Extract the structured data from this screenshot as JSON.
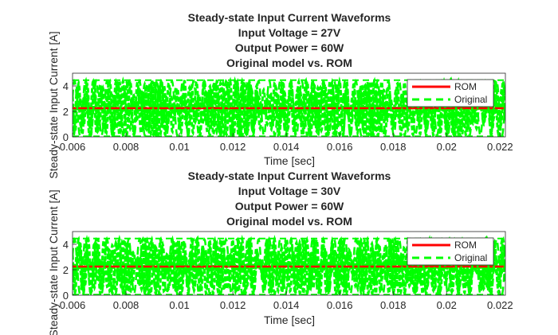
{
  "chart_data": [
    {
      "type": "line",
      "title_lines": [
        "Steady-state Input Current Waveforms",
        "Input Voltage = 27V",
        "Output Power = 60W",
        "Original model vs. ROM"
      ],
      "xlabel": "Time [sec]",
      "ylabel": "Steady-state Input Current [A]",
      "xlim": [
        0.006,
        0.0222
      ],
      "ylim": [
        0,
        5
      ],
      "xticks": [
        0.006,
        0.008,
        0.01,
        0.012,
        0.014,
        0.016,
        0.018,
        0.02,
        0.022
      ],
      "xtick_labels": [
        "0.006",
        "0.008",
        "0.01",
        "0.012",
        "0.014",
        "0.016",
        "0.018",
        "0.02",
        "0.022"
      ],
      "yticks": [
        0,
        2,
        4
      ],
      "ytick_labels": [
        "0",
        "2",
        "4"
      ],
      "legend": "top-right",
      "grid": false,
      "series": [
        {
          "name": "ROM",
          "color": "#ff0000",
          "style": "solid",
          "y": [
            2.25,
            2.25,
            2.25,
            2.25,
            2.25,
            2.25,
            2.25,
            2.25,
            2.25
          ]
        },
        {
          "name": "Original",
          "color": "#00ff00",
          "style": "dashed",
          "mean": 2.25,
          "amplitude": 2.15,
          "min": 0.05,
          "max": 4.45
        }
      ]
    },
    {
      "type": "line",
      "title_lines": [
        "Steady-state Input Current Waveforms",
        "Input Voltage = 30V",
        "Output Power = 60W",
        "Original model vs. ROM"
      ],
      "xlabel": "Time [sec]",
      "ylabel": "Steady-state Input Current [A]",
      "xlim": [
        0.006,
        0.0222
      ],
      "ylim": [
        0,
        5
      ],
      "xticks": [
        0.006,
        0.008,
        0.01,
        0.012,
        0.014,
        0.016,
        0.018,
        0.02,
        0.022
      ],
      "xtick_labels": [
        "0.006",
        "0.008",
        "0.01",
        "0.012",
        "0.014",
        "0.016",
        "0.018",
        "0.02",
        "0.022"
      ],
      "yticks": [
        0,
        2,
        4
      ],
      "ytick_labels": [
        "0",
        "2",
        "4"
      ],
      "legend": "top-right",
      "grid": false,
      "series": [
        {
          "name": "ROM",
          "color": "#ff0000",
          "style": "solid",
          "y": [
            2.25,
            2.25,
            2.25,
            2.25,
            2.25,
            2.25,
            2.25,
            2.25,
            2.25
          ]
        },
        {
          "name": "Original",
          "color": "#00ff00",
          "style": "dashed",
          "mean": 2.25,
          "amplitude": 2.15,
          "min": 0.05,
          "max": 4.45
        }
      ]
    }
  ]
}
